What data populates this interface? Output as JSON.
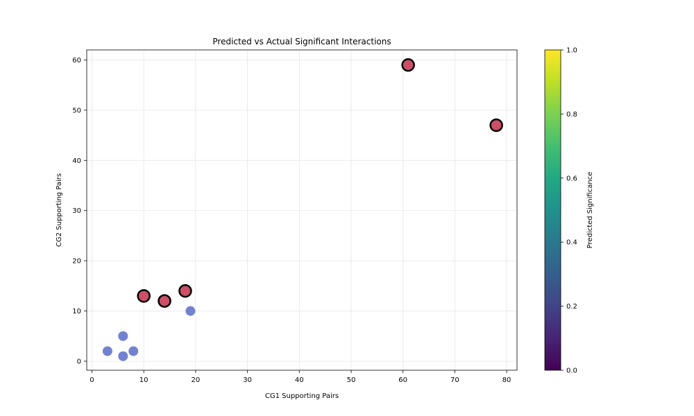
{
  "chart_data": {
    "type": "scatter",
    "title": "Predicted vs Actual Significant Interactions",
    "xlabel": "CG1 Supporting Pairs",
    "ylabel": "CG2 Supporting Pairs",
    "xlim": [
      -1,
      82
    ],
    "ylim": [
      -1.8,
      62
    ],
    "xticks": [
      0,
      10,
      20,
      30,
      40,
      50,
      60,
      70,
      80
    ],
    "yticks": [
      0,
      10,
      20,
      30,
      40,
      50,
      60
    ],
    "grid": true,
    "points": [
      {
        "x": 3,
        "y": 2,
        "predicted": 0.1,
        "actual_significant": false
      },
      {
        "x": 6,
        "y": 5,
        "predicted": 0.1,
        "actual_significant": false
      },
      {
        "x": 6,
        "y": 1,
        "predicted": 0.1,
        "actual_significant": false
      },
      {
        "x": 8,
        "y": 2,
        "predicted": 0.1,
        "actual_significant": false
      },
      {
        "x": 19,
        "y": 10,
        "predicted": 0.1,
        "actual_significant": false
      },
      {
        "x": 10,
        "y": 13,
        "predicted": 0.9,
        "actual_significant": true
      },
      {
        "x": 14,
        "y": 12,
        "predicted": 0.9,
        "actual_significant": true
      },
      {
        "x": 18,
        "y": 14,
        "predicted": 0.9,
        "actual_significant": true
      },
      {
        "x": 61,
        "y": 59,
        "predicted": 0.9,
        "actual_significant": true
      },
      {
        "x": 78,
        "y": 47,
        "predicted": 0.9,
        "actual_significant": true
      }
    ],
    "colors": {
      "low_marker": "#5b6cc7",
      "high_marker": "#c3304b",
      "highlight_edge": "#000000",
      "grid": "#e6e6e6"
    },
    "colorbar": {
      "label": "Predicted Significance",
      "range": [
        0,
        1
      ],
      "ticks": [
        "0.0",
        "0.2",
        "0.4",
        "0.6",
        "0.8",
        "1.0"
      ],
      "colormap": "viridis"
    }
  }
}
